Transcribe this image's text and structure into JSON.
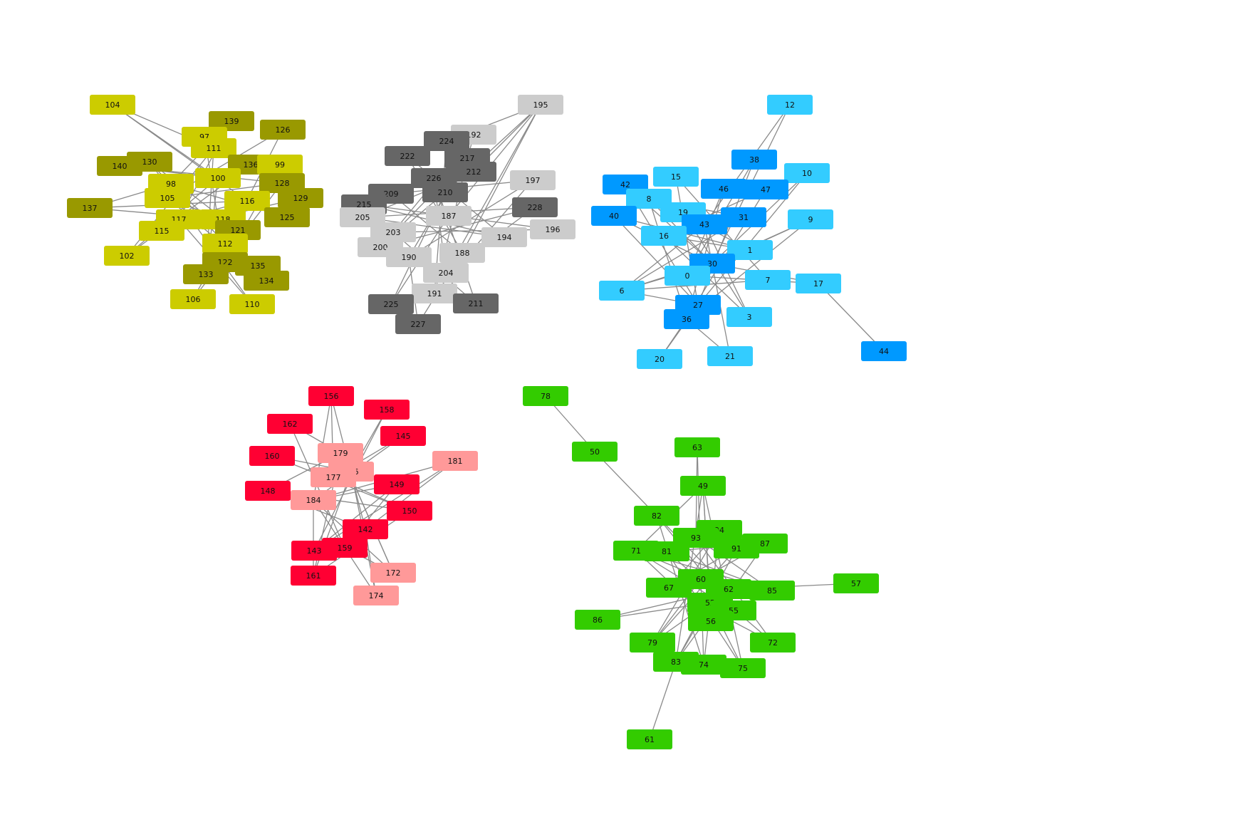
{
  "colors": {
    "edge": "#8a8a8a",
    "yellow": "#cccc00",
    "olive": "#999900",
    "dark_gray": "#666666",
    "light_gray": "#cccccc",
    "light_blue": "#33ccff",
    "blue": "#0099ff",
    "red": "#ff0033",
    "pink": "#ff9999",
    "green": "#33cc00"
  },
  "clusters": [
    {
      "name": "yellow",
      "nodes": [
        {
          "id": "104",
          "color": "yellow"
        },
        {
          "id": "139",
          "color": "olive"
        },
        {
          "id": "126",
          "color": "olive"
        },
        {
          "id": "97",
          "color": "yellow"
        },
        {
          "id": "111",
          "color": "yellow"
        },
        {
          "id": "140",
          "color": "olive"
        },
        {
          "id": "130",
          "color": "olive"
        },
        {
          "id": "136",
          "color": "olive"
        },
        {
          "id": "99",
          "color": "yellow"
        },
        {
          "id": "98",
          "color": "yellow"
        },
        {
          "id": "100",
          "color": "yellow"
        },
        {
          "id": "128",
          "color": "olive"
        },
        {
          "id": "105",
          "color": "yellow"
        },
        {
          "id": "116",
          "color": "yellow"
        },
        {
          "id": "129",
          "color": "olive"
        },
        {
          "id": "137",
          "color": "olive"
        },
        {
          "id": "117",
          "color": "yellow"
        },
        {
          "id": "118",
          "color": "yellow"
        },
        {
          "id": "125",
          "color": "olive"
        },
        {
          "id": "121",
          "color": "olive"
        },
        {
          "id": "115",
          "color": "yellow"
        },
        {
          "id": "112",
          "color": "yellow"
        },
        {
          "id": "102",
          "color": "yellow"
        },
        {
          "id": "122",
          "color": "olive"
        },
        {
          "id": "135",
          "color": "olive"
        },
        {
          "id": "133",
          "color": "olive"
        },
        {
          "id": "134",
          "color": "olive"
        },
        {
          "id": "106",
          "color": "yellow"
        },
        {
          "id": "110",
          "color": "yellow"
        }
      ]
    },
    {
      "name": "gray",
      "nodes": [
        {
          "id": "195",
          "color": "light_gray"
        },
        {
          "id": "192",
          "color": "light_gray"
        },
        {
          "id": "224",
          "color": "dark_gray"
        },
        {
          "id": "222",
          "color": "dark_gray"
        },
        {
          "id": "217",
          "color": "dark_gray"
        },
        {
          "id": "212",
          "color": "dark_gray"
        },
        {
          "id": "226",
          "color": "dark_gray"
        },
        {
          "id": "197",
          "color": "light_gray"
        },
        {
          "id": "209",
          "color": "dark_gray"
        },
        {
          "id": "210",
          "color": "dark_gray"
        },
        {
          "id": "215",
          "color": "dark_gray"
        },
        {
          "id": "228",
          "color": "dark_gray"
        },
        {
          "id": "205",
          "color": "light_gray"
        },
        {
          "id": "187",
          "color": "light_gray"
        },
        {
          "id": "203",
          "color": "light_gray"
        },
        {
          "id": "196",
          "color": "light_gray"
        },
        {
          "id": "194",
          "color": "light_gray"
        },
        {
          "id": "200",
          "color": "light_gray"
        },
        {
          "id": "190",
          "color": "light_gray"
        },
        {
          "id": "188",
          "color": "light_gray"
        },
        {
          "id": "204",
          "color": "light_gray"
        },
        {
          "id": "191",
          "color": "light_gray"
        },
        {
          "id": "225",
          "color": "dark_gray"
        },
        {
          "id": "211",
          "color": "dark_gray"
        },
        {
          "id": "227",
          "color": "dark_gray"
        }
      ]
    },
    {
      "name": "blue",
      "nodes": [
        {
          "id": "12",
          "color": "light_blue"
        },
        {
          "id": "38",
          "color": "blue"
        },
        {
          "id": "10",
          "color": "light_blue"
        },
        {
          "id": "15",
          "color": "light_blue"
        },
        {
          "id": "42",
          "color": "blue"
        },
        {
          "id": "46",
          "color": "blue"
        },
        {
          "id": "47",
          "color": "blue"
        },
        {
          "id": "8",
          "color": "light_blue"
        },
        {
          "id": "40",
          "color": "blue"
        },
        {
          "id": "19",
          "color": "light_blue"
        },
        {
          "id": "31",
          "color": "blue"
        },
        {
          "id": "9",
          "color": "light_blue"
        },
        {
          "id": "43",
          "color": "blue"
        },
        {
          "id": "16",
          "color": "light_blue"
        },
        {
          "id": "1",
          "color": "light_blue"
        },
        {
          "id": "30",
          "color": "blue"
        },
        {
          "id": "6",
          "color": "light_blue"
        },
        {
          "id": "0",
          "color": "light_blue"
        },
        {
          "id": "7",
          "color": "light_blue"
        },
        {
          "id": "17",
          "color": "light_blue"
        },
        {
          "id": "27",
          "color": "blue"
        },
        {
          "id": "36",
          "color": "blue"
        },
        {
          "id": "3",
          "color": "light_blue"
        },
        {
          "id": "20",
          "color": "light_blue"
        },
        {
          "id": "21",
          "color": "light_blue"
        },
        {
          "id": "44",
          "color": "blue"
        }
      ]
    },
    {
      "name": "red",
      "nodes": [
        {
          "id": "156",
          "color": "red"
        },
        {
          "id": "158",
          "color": "red"
        },
        {
          "id": "162",
          "color": "red"
        },
        {
          "id": "145",
          "color": "red"
        },
        {
          "id": "160",
          "color": "red"
        },
        {
          "id": "179",
          "color": "pink"
        },
        {
          "id": "181",
          "color": "pink"
        },
        {
          "id": "166",
          "color": "pink"
        },
        {
          "id": "149",
          "color": "red"
        },
        {
          "id": "148",
          "color": "red"
        },
        {
          "id": "184",
          "color": "pink"
        },
        {
          "id": "177",
          "color": "pink"
        },
        {
          "id": "150",
          "color": "red"
        },
        {
          "id": "142",
          "color": "red"
        },
        {
          "id": "143",
          "color": "red"
        },
        {
          "id": "159",
          "color": "red"
        },
        {
          "id": "172",
          "color": "pink"
        },
        {
          "id": "161",
          "color": "red"
        },
        {
          "id": "174",
          "color": "pink"
        }
      ]
    },
    {
      "name": "green",
      "nodes": [
        {
          "id": "78",
          "color": "green"
        },
        {
          "id": "50",
          "color": "green"
        },
        {
          "id": "63",
          "color": "green"
        },
        {
          "id": "49",
          "color": "green"
        },
        {
          "id": "82",
          "color": "green"
        },
        {
          "id": "94",
          "color": "green"
        },
        {
          "id": "93",
          "color": "green"
        },
        {
          "id": "87",
          "color": "green"
        },
        {
          "id": "71",
          "color": "green"
        },
        {
          "id": "81",
          "color": "green"
        },
        {
          "id": "91",
          "color": "green"
        },
        {
          "id": "60",
          "color": "green"
        },
        {
          "id": "57",
          "color": "green"
        },
        {
          "id": "67",
          "color": "green"
        },
        {
          "id": "62",
          "color": "green"
        },
        {
          "id": "85",
          "color": "green"
        },
        {
          "id": "52",
          "color": "green"
        },
        {
          "id": "55",
          "color": "green"
        },
        {
          "id": "86",
          "color": "green"
        },
        {
          "id": "56",
          "color": "green"
        },
        {
          "id": "79",
          "color": "green"
        },
        {
          "id": "72",
          "color": "green"
        },
        {
          "id": "83",
          "color": "green"
        },
        {
          "id": "74",
          "color": "green"
        },
        {
          "id": "75",
          "color": "green"
        },
        {
          "id": "61",
          "color": "green"
        }
      ]
    }
  ],
  "edges": [
    [
      "104",
      "100"
    ],
    [
      "104",
      "116"
    ],
    [
      "104",
      "111"
    ],
    [
      "139",
      "98"
    ],
    [
      "139",
      "117"
    ],
    [
      "126",
      "105"
    ],
    [
      "126",
      "112"
    ],
    [
      "140",
      "100"
    ],
    [
      "140",
      "128"
    ],
    [
      "137",
      "116"
    ],
    [
      "137",
      "118"
    ],
    [
      "137",
      "98"
    ],
    [
      "102",
      "111"
    ],
    [
      "102",
      "100"
    ],
    [
      "106",
      "116"
    ],
    [
      "106",
      "128"
    ],
    [
      "110",
      "117"
    ],
    [
      "110",
      "130"
    ],
    [
      "135",
      "98"
    ],
    [
      "134",
      "105"
    ],
    [
      "133",
      "100"
    ],
    [
      "99",
      "122"
    ],
    [
      "129",
      "115"
    ],
    [
      "125",
      "98"
    ],
    [
      "136",
      "102"
    ],
    [
      "97",
      "122"
    ],
    [
      "130",
      "121"
    ],
    [
      "111",
      "133"
    ],
    [
      "128",
      "105"
    ],
    [
      "117",
      "116"
    ],
    [
      "118",
      "105"
    ],
    [
      "112",
      "130"
    ],
    [
      "195",
      "224"
    ],
    [
      "195",
      "210"
    ],
    [
      "195",
      "187"
    ],
    [
      "195",
      "188"
    ],
    [
      "195",
      "212"
    ],
    [
      "195",
      "204"
    ],
    [
      "192",
      "203"
    ],
    [
      "192",
      "191"
    ],
    [
      "197",
      "209"
    ],
    [
      "197",
      "190"
    ],
    [
      "228",
      "205"
    ],
    [
      "228",
      "200"
    ],
    [
      "196",
      "187"
    ],
    [
      "196",
      "203"
    ],
    [
      "194",
      "222"
    ],
    [
      "194",
      "215"
    ],
    [
      "222",
      "188"
    ],
    [
      "224",
      "191"
    ],
    [
      "217",
      "200"
    ],
    [
      "212",
      "205"
    ],
    [
      "226",
      "204"
    ],
    [
      "209",
      "188"
    ],
    [
      "215",
      "187"
    ],
    [
      "205",
      "194"
    ],
    [
      "200",
      "210"
    ],
    [
      "190",
      "217"
    ],
    [
      "225",
      "187"
    ],
    [
      "225",
      "210"
    ],
    [
      "211",
      "203"
    ],
    [
      "211",
      "226"
    ],
    [
      "227",
      "190"
    ],
    [
      "227",
      "188"
    ],
    [
      "204",
      "228"
    ],
    [
      "191",
      "197"
    ],
    [
      "12",
      "30"
    ],
    [
      "12",
      "43"
    ],
    [
      "38",
      "0"
    ],
    [
      "38",
      "27"
    ],
    [
      "10",
      "30"
    ],
    [
      "10",
      "36"
    ],
    [
      "15",
      "27"
    ],
    [
      "15",
      "7"
    ],
    [
      "42",
      "30"
    ],
    [
      "42",
      "1"
    ],
    [
      "46",
      "0"
    ],
    [
      "47",
      "16"
    ],
    [
      "8",
      "36"
    ],
    [
      "8",
      "31"
    ],
    [
      "40",
      "30"
    ],
    [
      "40",
      "1"
    ],
    [
      "40",
      "27"
    ],
    [
      "19",
      "3"
    ],
    [
      "31",
      "6"
    ],
    [
      "9",
      "30"
    ],
    [
      "9",
      "36"
    ],
    [
      "9",
      "0"
    ],
    [
      "43",
      "3"
    ],
    [
      "16",
      "1"
    ],
    [
      "6",
      "30"
    ],
    [
      "6",
      "1"
    ],
    [
      "6",
      "43"
    ],
    [
      "6",
      "27"
    ],
    [
      "0",
      "9"
    ],
    [
      "7",
      "6"
    ],
    [
      "17",
      "30"
    ],
    [
      "17",
      "0"
    ],
    [
      "17",
      "44"
    ],
    [
      "27",
      "20"
    ],
    [
      "36",
      "20"
    ],
    [
      "3",
      "16"
    ],
    [
      "21",
      "36"
    ],
    [
      "21",
      "43"
    ],
    [
      "36",
      "46"
    ],
    [
      "1",
      "0"
    ],
    [
      "47",
      "36"
    ],
    [
      "42",
      "27"
    ],
    [
      "8",
      "30"
    ],
    [
      "156",
      "177"
    ],
    [
      "156",
      "184"
    ],
    [
      "156",
      "142"
    ],
    [
      "158",
      "166"
    ],
    [
      "158",
      "143"
    ],
    [
      "162",
      "159"
    ],
    [
      "162",
      "179"
    ],
    [
      "145",
      "184"
    ],
    [
      "145",
      "177"
    ],
    [
      "160",
      "166"
    ],
    [
      "160",
      "150"
    ],
    [
      "179",
      "161"
    ],
    [
      "179",
      "172"
    ],
    [
      "181",
      "184"
    ],
    [
      "181",
      "143"
    ],
    [
      "181",
      "142"
    ],
    [
      "166",
      "161"
    ],
    [
      "166",
      "174"
    ],
    [
      "149",
      "184"
    ],
    [
      "149",
      "159"
    ],
    [
      "148",
      "179"
    ],
    [
      "148",
      "150"
    ],
    [
      "148",
      "142"
    ],
    [
      "184",
      "172"
    ],
    [
      "184",
      "174"
    ],
    [
      "177",
      "150"
    ],
    [
      "150",
      "161"
    ],
    [
      "142",
      "174"
    ],
    [
      "143",
      "149"
    ],
    [
      "159",
      "172"
    ],
    [
      "172",
      "179"
    ],
    [
      "161",
      "184"
    ],
    [
      "78",
      "50"
    ],
    [
      "50",
      "82"
    ],
    [
      "63",
      "93"
    ],
    [
      "63",
      "60"
    ],
    [
      "49",
      "71"
    ],
    [
      "49",
      "52"
    ],
    [
      "49",
      "83"
    ],
    [
      "82",
      "62"
    ],
    [
      "82",
      "74"
    ],
    [
      "94",
      "67"
    ],
    [
      "94",
      "79"
    ],
    [
      "93",
      "72"
    ],
    [
      "93",
      "85"
    ],
    [
      "87",
      "60"
    ],
    [
      "87",
      "81"
    ],
    [
      "87",
      "56"
    ],
    [
      "71",
      "62"
    ],
    [
      "71",
      "85"
    ],
    [
      "81",
      "75"
    ],
    [
      "91",
      "67"
    ],
    [
      "91",
      "83"
    ],
    [
      "91",
      "79"
    ],
    [
      "60",
      "74"
    ],
    [
      "60",
      "79"
    ],
    [
      "57",
      "62"
    ],
    [
      "67",
      "85"
    ],
    [
      "67",
      "72"
    ],
    [
      "62",
      "83"
    ],
    [
      "85",
      "81"
    ],
    [
      "52",
      "83"
    ],
    [
      "52",
      "75"
    ],
    [
      "55",
      "71"
    ],
    [
      "55",
      "82"
    ],
    [
      "86",
      "52"
    ],
    [
      "86",
      "62"
    ],
    [
      "56",
      "71"
    ],
    [
      "56",
      "49"
    ],
    [
      "79",
      "62"
    ],
    [
      "72",
      "81"
    ],
    [
      "83",
      "61"
    ],
    [
      "74",
      "94"
    ],
    [
      "75",
      "49"
    ]
  ]
}
